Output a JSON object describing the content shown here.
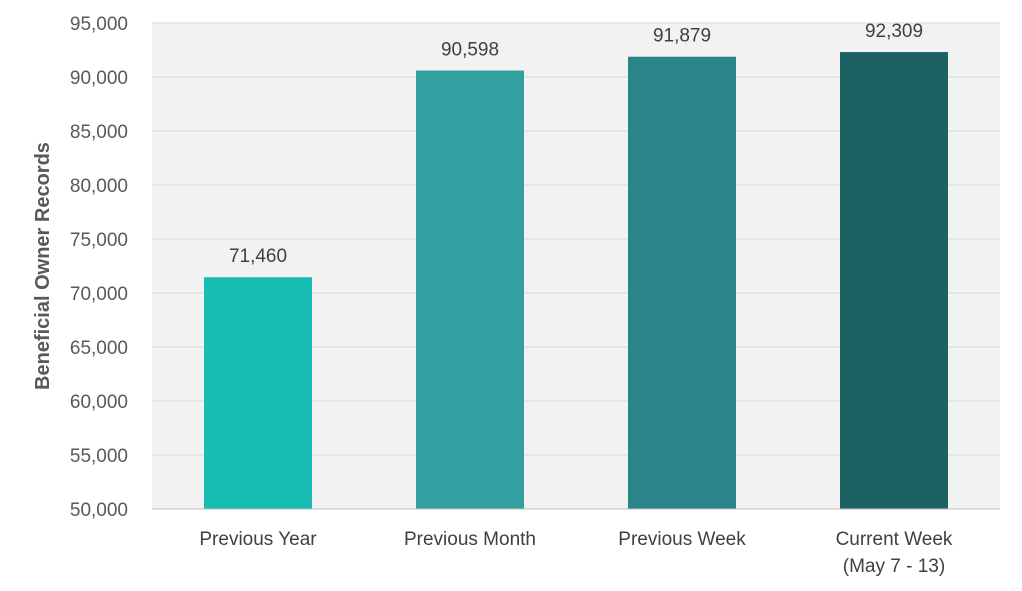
{
  "chart_data": {
    "type": "bar",
    "title": "",
    "xlabel": "",
    "ylabel": "Beneficial Owner Records",
    "ylim": [
      50000,
      95000
    ],
    "ytick_step": 5000,
    "ytick_labels": [
      "50,000",
      "55,000",
      "60,000",
      "65,000",
      "70,000",
      "75,000",
      "80,000",
      "85,000",
      "90,000",
      "95,000"
    ],
    "grid": true,
    "legend": "none",
    "categories": [
      [
        "Previous Year"
      ],
      [
        "Previous Month"
      ],
      [
        "Previous Week"
      ],
      [
        "Current Week",
        "(May 7 - 13)"
      ]
    ],
    "values": [
      71460,
      90598,
      91879,
      92309
    ],
    "value_labels": [
      "71,460",
      "90,598",
      "91,879",
      "92,309"
    ],
    "colors": [
      "#17BDB3",
      "#339FA1",
      "#2A8489",
      "#1C6262"
    ],
    "plot_background": "#F2F2F2",
    "gridline_color": "#D9D9D9"
  }
}
